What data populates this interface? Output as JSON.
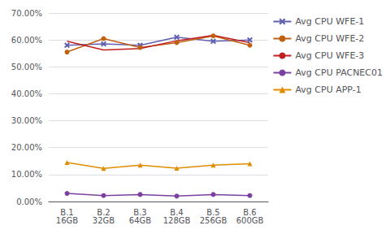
{
  "chart_data": {
    "type": "line",
    "categories": [
      "B.1\n16GB",
      "B.2\n32GB",
      "B.3\n64GB",
      "B.4\n128GB",
      "B.5\n256GB",
      "B.6\n600GB"
    ],
    "series": [
      {
        "name": "Avg CPU WFE-1",
        "color": "#6060B0",
        "marker": "x",
        "values": [
          0.58,
          0.585,
          0.58,
          0.61,
          0.595,
          0.6
        ]
      },
      {
        "name": "Avg CPU WFE-2",
        "color": "#C06010",
        "marker": "circle",
        "values": [
          0.555,
          0.605,
          0.572,
          0.59,
          0.615,
          0.58
        ]
      },
      {
        "name": "Avg CPU WFE-3",
        "color": "#C02020",
        "marker": "none",
        "values": [
          0.595,
          0.563,
          0.568,
          0.597,
          0.617,
          0.59
        ]
      },
      {
        "name": "Avg CPU PACNEC01",
        "color": "#7B40A0",
        "marker": "circle",
        "values": [
          0.03,
          0.022,
          0.026,
          0.02,
          0.026,
          0.022
        ]
      },
      {
        "name": "Avg CPU APP-1",
        "color": "#E08C00",
        "marker": "triangle",
        "values": [
          0.145,
          0.123,
          0.135,
          0.124,
          0.135,
          0.14
        ]
      }
    ],
    "ylim": [
      0.0,
      0.7
    ],
    "yticks": [
      {
        "value": 0.0,
        "label": "0.00%"
      },
      {
        "value": 0.1,
        "label": "10.00%"
      },
      {
        "value": 0.2,
        "label": "20.00%"
      },
      {
        "value": 0.3,
        "label": "30.00%"
      },
      {
        "value": 0.4,
        "label": "40.00%"
      },
      {
        "value": 0.5,
        "label": "50.00%"
      },
      {
        "value": 0.6,
        "label": "60.00%"
      },
      {
        "value": 0.7,
        "label": "70.00%"
      }
    ],
    "grid": true,
    "legend": "right"
  }
}
